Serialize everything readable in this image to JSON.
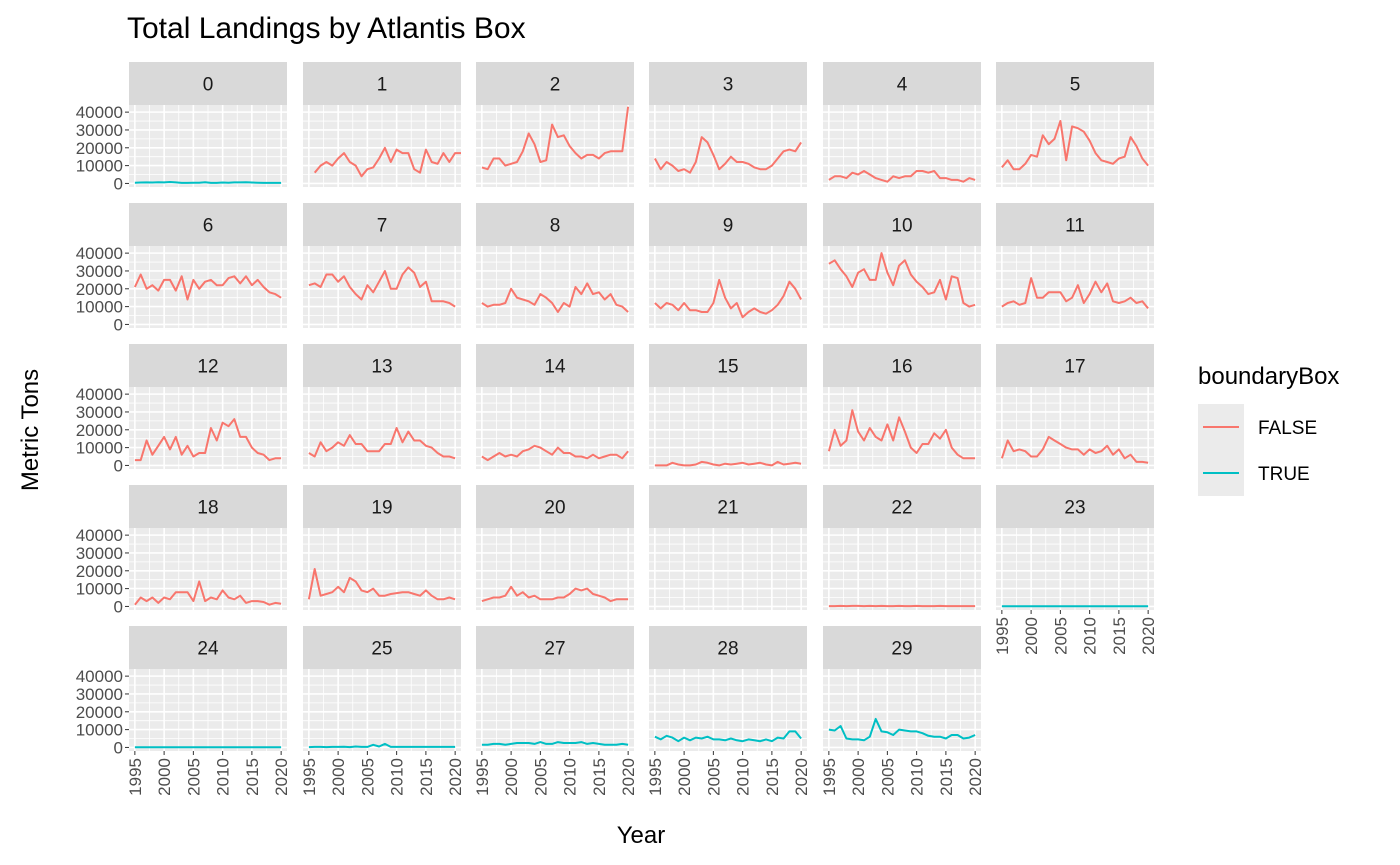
{
  "chart_data": {
    "type": "line",
    "title": "Total Landings by Atlantis Box",
    "xlabel": "Year",
    "ylabel": "Metric Tons",
    "xlim": [
      1994,
      2021
    ],
    "ylim": [
      -2000,
      44000
    ],
    "x_ticks": [
      "1995",
      "2000",
      "2005",
      "2010",
      "2015",
      "2020"
    ],
    "y_ticks": [
      "0",
      "10000",
      "20000",
      "30000",
      "40000"
    ],
    "grid": true,
    "legend": {
      "title": "boundaryBox",
      "position": "right",
      "entries": [
        {
          "label": "FALSE",
          "color": "#F8766D"
        },
        {
          "label": "TRUE",
          "color": "#00BFC4"
        }
      ]
    },
    "panels": [
      {
        "label": "0",
        "series": "TRUE",
        "start": 1995,
        "values": [
          400,
          500,
          600,
          500,
          700,
          600,
          800,
          600,
          300,
          300,
          400,
          400,
          700,
          300,
          300,
          500,
          400,
          600,
          600,
          700,
          500,
          400,
          300,
          300,
          300,
          300
        ]
      },
      {
        "label": "1",
        "series": "FALSE",
        "start": 1996,
        "values": [
          6000,
          10000,
          12000,
          10000,
          14000,
          17000,
          12000,
          10000,
          4000,
          8000,
          9000,
          14000,
          20000,
          12000,
          19000,
          17000,
          17000,
          8000,
          6000,
          19000,
          12000,
          11000,
          17000,
          12000,
          17000,
          17000
        ]
      },
      {
        "label": "2",
        "series": "FALSE",
        "start": 1995,
        "values": [
          9000,
          8000,
          14000,
          14000,
          10000,
          11000,
          12000,
          18000,
          28000,
          22000,
          12000,
          13000,
          33000,
          26000,
          27000,
          21000,
          17000,
          14000,
          16000,
          16000,
          14000,
          17000,
          18000,
          18000,
          18000,
          43000
        ]
      },
      {
        "label": "3",
        "series": "FALSE",
        "start": 1995,
        "values": [
          14000,
          8000,
          12000,
          10000,
          7000,
          8000,
          6000,
          12000,
          26000,
          23000,
          16000,
          8000,
          11000,
          15000,
          12000,
          12000,
          11000,
          9000,
          8000,
          8000,
          10000,
          14000,
          18000,
          19000,
          18000,
          23000
        ]
      },
      {
        "label": "4",
        "series": "FALSE",
        "start": 1995,
        "values": [
          2000,
          4000,
          4000,
          3000,
          6000,
          5000,
          7000,
          5000,
          3000,
          2000,
          1000,
          4000,
          3000,
          4000,
          4000,
          7000,
          7000,
          6000,
          7000,
          3000,
          3000,
          2000,
          2000,
          1000,
          3000,
          2000
        ]
      },
      {
        "label": "5",
        "series": "FALSE",
        "start": 1995,
        "values": [
          9000,
          13000,
          8000,
          8000,
          11000,
          16000,
          15000,
          27000,
          22000,
          25000,
          35000,
          13000,
          32000,
          31000,
          29000,
          24000,
          17000,
          13000,
          12000,
          11000,
          14000,
          15000,
          26000,
          21000,
          14000,
          10000
        ]
      },
      {
        "label": "6",
        "series": "FALSE",
        "start": 1995,
        "values": [
          21000,
          28000,
          20000,
          22000,
          19000,
          25000,
          25000,
          19000,
          27000,
          14000,
          25000,
          20000,
          24000,
          25000,
          22000,
          22000,
          26000,
          27000,
          23000,
          27000,
          22000,
          25000,
          21000,
          18000,
          17000,
          15000
        ]
      },
      {
        "label": "7",
        "series": "FALSE",
        "start": 1995,
        "values": [
          22000,
          23000,
          21000,
          28000,
          28000,
          24000,
          27000,
          21000,
          17000,
          14000,
          22000,
          18000,
          24000,
          30000,
          20000,
          20000,
          28000,
          32000,
          29000,
          21000,
          24000,
          13000,
          13000,
          13000,
          12000,
          10000
        ]
      },
      {
        "label": "8",
        "series": "FALSE",
        "start": 1995,
        "values": [
          12000,
          10000,
          11000,
          11000,
          12000,
          20000,
          15000,
          14000,
          13000,
          11000,
          17000,
          15000,
          12000,
          7000,
          12000,
          10000,
          21000,
          17000,
          23000,
          17000,
          18000,
          14000,
          17000,
          11000,
          10000,
          7000
        ]
      },
      {
        "label": "9",
        "series": "FALSE",
        "start": 1995,
        "values": [
          12000,
          9000,
          12000,
          11000,
          8000,
          12000,
          8000,
          8000,
          7000,
          7000,
          12000,
          25000,
          15000,
          9000,
          12000,
          4000,
          7000,
          9000,
          7000,
          6000,
          8000,
          11000,
          16000,
          24000,
          20000,
          14000
        ]
      },
      {
        "label": "10",
        "series": "FALSE",
        "start": 1995,
        "values": [
          34000,
          36000,
          31000,
          27000,
          21000,
          29000,
          31000,
          25000,
          25000,
          40000,
          29000,
          22000,
          33000,
          36000,
          28000,
          24000,
          21000,
          17000,
          18000,
          25000,
          14000,
          27000,
          26000,
          12000,
          10000,
          11000
        ]
      },
      {
        "label": "11",
        "series": "FALSE",
        "start": 1995,
        "values": [
          10000,
          12000,
          13000,
          11000,
          12000,
          26000,
          15000,
          15000,
          18000,
          18000,
          18000,
          13000,
          15000,
          22000,
          12000,
          17000,
          24000,
          18000,
          23000,
          13000,
          12000,
          13000,
          15000,
          12000,
          13000,
          9000
        ]
      },
      {
        "label": "12",
        "series": "FALSE",
        "start": 1995,
        "values": [
          3000,
          3000,
          14000,
          6000,
          11000,
          16000,
          9000,
          16000,
          6000,
          11000,
          5000,
          7000,
          7000,
          21000,
          14000,
          24000,
          22000,
          26000,
          16000,
          16000,
          10000,
          7000,
          6000,
          3000,
          4000,
          4000
        ]
      },
      {
        "label": "13",
        "series": "FALSE",
        "start": 1995,
        "values": [
          7000,
          5000,
          13000,
          8000,
          10000,
          13000,
          11000,
          17000,
          12000,
          12000,
          8000,
          8000,
          8000,
          12000,
          12000,
          21000,
          13000,
          19000,
          14000,
          14000,
          11000,
          10000,
          7000,
          5000,
          5000,
          4000
        ]
      },
      {
        "label": "14",
        "series": "FALSE",
        "start": 1995,
        "values": [
          5000,
          3000,
          5000,
          7000,
          5000,
          6000,
          5000,
          8000,
          9000,
          11000,
          10000,
          8000,
          6000,
          10000,
          7000,
          7000,
          5000,
          5000,
          4000,
          6000,
          4000,
          5000,
          6000,
          6000,
          4000,
          8000
        ]
      },
      {
        "label": "15",
        "series": "FALSE",
        "start": 1995,
        "values": [
          0,
          0,
          0,
          1500,
          500,
          0,
          0,
          500,
          2000,
          1500,
          500,
          0,
          1000,
          500,
          1000,
          1500,
          500,
          1000,
          1500,
          500,
          0,
          2000,
          500,
          1000,
          1500,
          1000
        ]
      },
      {
        "label": "16",
        "series": "FALSE",
        "start": 1995,
        "values": [
          8000,
          20000,
          11000,
          14000,
          31000,
          19000,
          14000,
          21000,
          16000,
          14000,
          23000,
          14000,
          27000,
          19000,
          10000,
          7000,
          12000,
          12000,
          18000,
          15000,
          20000,
          10000,
          6000,
          4000,
          4000,
          4000
        ]
      },
      {
        "label": "17",
        "series": "FALSE",
        "start": 1995,
        "values": [
          4000,
          14000,
          8000,
          9000,
          8000,
          5000,
          5000,
          9000,
          16000,
          14000,
          12000,
          10000,
          9000,
          9000,
          6000,
          9000,
          7000,
          8000,
          11000,
          6000,
          9000,
          4000,
          6000,
          2000,
          2000,
          1500
        ]
      },
      {
        "label": "18",
        "series": "FALSE",
        "start": 1995,
        "values": [
          1000,
          5000,
          3000,
          5000,
          2000,
          5000,
          4000,
          8000,
          8000,
          8000,
          3000,
          14000,
          3000,
          5000,
          4000,
          9000,
          5000,
          4000,
          6000,
          2000,
          3000,
          3000,
          2500,
          1000,
          2000,
          1500
        ]
      },
      {
        "label": "19",
        "series": "FALSE",
        "start": 1995,
        "values": [
          4000,
          21000,
          6000,
          7000,
          8000,
          11000,
          8000,
          16000,
          14000,
          9000,
          8000,
          10000,
          6000,
          6000,
          7000,
          7500,
          8000,
          8000,
          7000,
          6000,
          9000,
          6000,
          4000,
          4000,
          5000,
          4000
        ]
      },
      {
        "label": "20",
        "series": "FALSE",
        "start": 1995,
        "values": [
          3000,
          4000,
          5000,
          5000,
          6000,
          11000,
          6000,
          8000,
          5000,
          6000,
          4000,
          4000,
          4000,
          5000,
          5000,
          7000,
          10000,
          9000,
          10000,
          7000,
          6000,
          5000,
          3000,
          4000,
          4000,
          4000
        ]
      },
      {
        "label": "21",
        "series": "FALSE",
        "start": 1995,
        "values": []
      },
      {
        "label": "22",
        "series": "FALSE",
        "start": 1995,
        "values": [
          200,
          200,
          300,
          200,
          300,
          300,
          200,
          300,
          200,
          300,
          200,
          200,
          300,
          200,
          200,
          300,
          200,
          200,
          200,
          300,
          200,
          200,
          200,
          200,
          200,
          200
        ]
      },
      {
        "label": "23",
        "series": "TRUE",
        "start": 1995,
        "values": [
          100,
          100,
          100,
          100,
          100,
          100,
          100,
          100,
          100,
          100,
          100,
          100,
          100,
          100,
          100,
          100,
          100,
          100,
          100,
          100,
          100,
          100,
          100,
          100,
          100,
          100
        ]
      },
      {
        "label": "24",
        "series": "TRUE",
        "start": 1995,
        "values": [
          100,
          100,
          100,
          100,
          100,
          100,
          100,
          100,
          100,
          100,
          100,
          100,
          100,
          100,
          100,
          100,
          100,
          100,
          100,
          100,
          100,
          100,
          100,
          100,
          100,
          100
        ]
      },
      {
        "label": "25",
        "series": "TRUE",
        "start": 1995,
        "values": [
          200,
          300,
          300,
          200,
          300,
          300,
          400,
          200,
          500,
          300,
          300,
          1500,
          500,
          2000,
          300,
          300,
          300,
          300,
          300,
          300,
          300,
          300,
          300,
          300,
          300,
          300
        ]
      },
      {
        "label": "27",
        "series": "TRUE",
        "start": 1995,
        "values": [
          1500,
          1500,
          2000,
          2000,
          1500,
          2000,
          2500,
          2500,
          2500,
          2000,
          3000,
          2000,
          2000,
          3000,
          2500,
          2500,
          2500,
          3000,
          2000,
          2500,
          2000,
          1500,
          1500,
          1500,
          2000,
          1500
        ]
      },
      {
        "label": "28",
        "series": "TRUE",
        "start": 1995,
        "values": [
          6000,
          4500,
          6500,
          5500,
          3500,
          5500,
          4000,
          5500,
          5000,
          6000,
          4500,
          4500,
          4000,
          5000,
          4000,
          3500,
          4500,
          4000,
          3500,
          4500,
          3500,
          5500,
          5000,
          9000,
          9000,
          5000
        ]
      },
      {
        "label": "29",
        "series": "TRUE",
        "start": 1995,
        "values": [
          10000,
          9500,
          12000,
          5000,
          4500,
          4500,
          4000,
          6000,
          16000,
          9000,
          8500,
          7000,
          10000,
          9500,
          9000,
          9000,
          8000,
          6500,
          6000,
          6000,
          5000,
          7000,
          7000,
          5000,
          5500,
          7000
        ]
      }
    ]
  }
}
